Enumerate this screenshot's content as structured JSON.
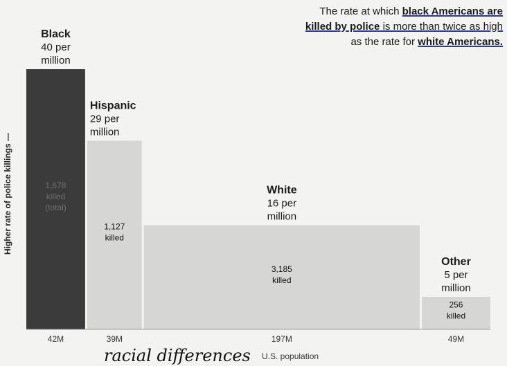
{
  "headline": {
    "p1": "The rate at which ",
    "b1": "black Americans are",
    "p2": "killed by police",
    "p3": " is more than twice as high",
    "p4": "as the rate for ",
    "b2": "white Americans."
  },
  "chart_data": {
    "type": "bar",
    "subtype": "variable-width (marimekko)",
    "ylabel": "Higher rate of police killings —",
    "xlabel": "U.S. population",
    "categories": [
      "Black",
      "Hispanic",
      "White",
      "Other"
    ],
    "rate_labels": [
      "40 per million",
      "29 per million",
      "16 per million",
      "5 per million"
    ],
    "rate_per_million": [
      40,
      29,
      16,
      5
    ],
    "population_labels": [
      "42M",
      "39M",
      "197M",
      "49M"
    ],
    "population_millions": [
      42,
      39,
      197,
      49
    ],
    "killed_labels": [
      "1,678 killed (total)",
      "1,127 killed",
      "3,185 killed",
      "256 killed"
    ],
    "killed": [
      1678,
      1127,
      3185,
      256
    ],
    "colors": [
      "#3b3b3b",
      "#d6d6d4",
      "#d6d6d4",
      "#d6d6d4"
    ],
    "ylim": [
      0,
      40
    ]
  },
  "annotation": {
    "handwritten": "racial differences"
  }
}
